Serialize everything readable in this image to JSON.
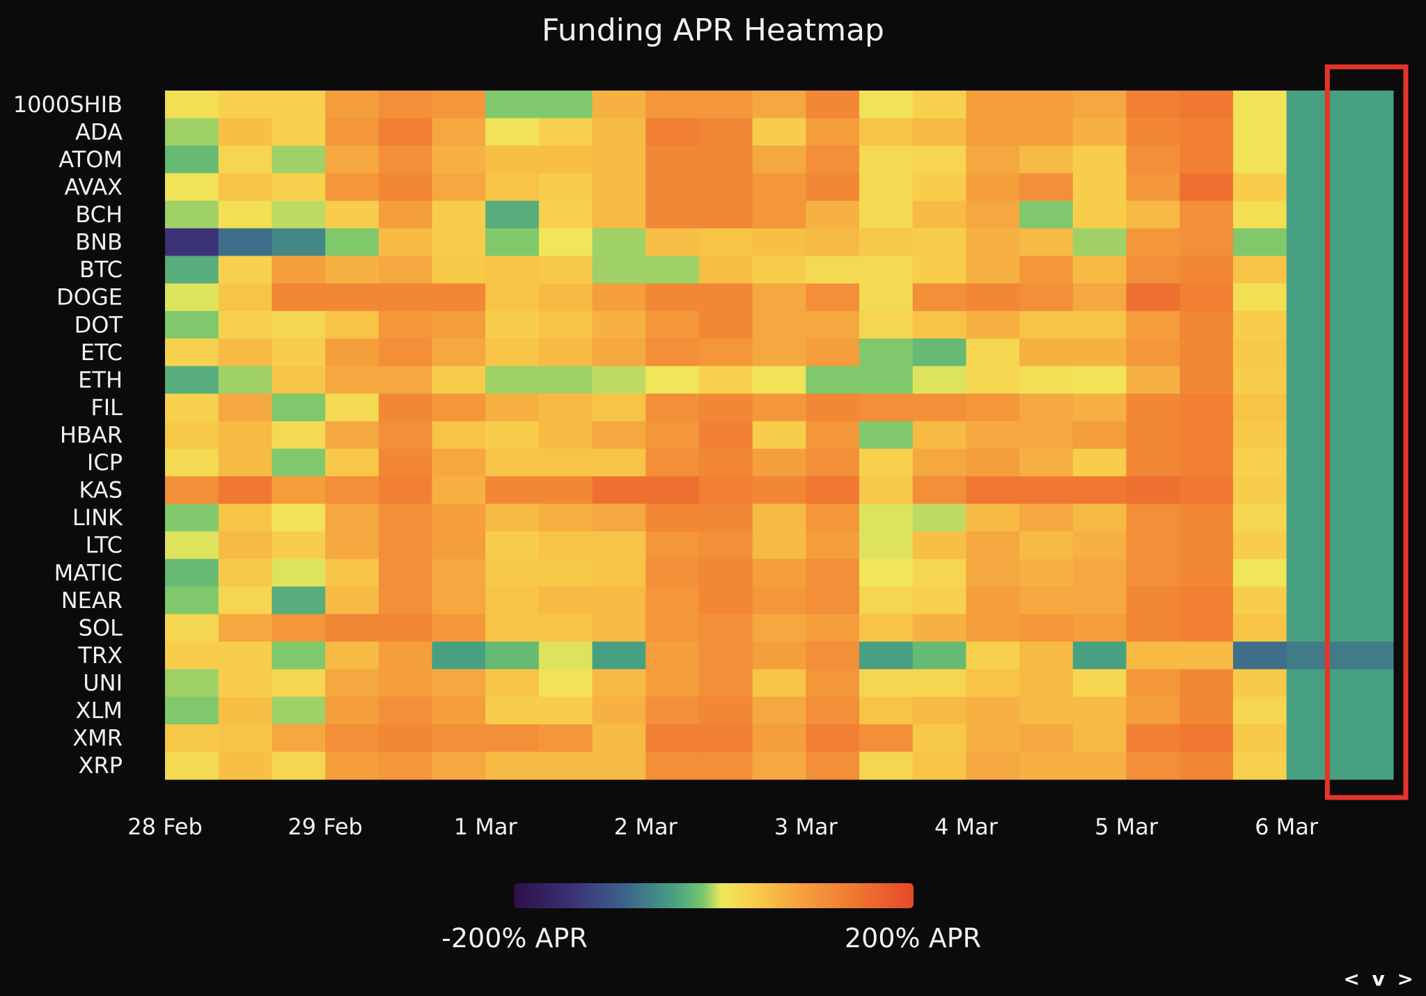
{
  "chart_data": {
    "type": "heatmap",
    "title": "Funding APR Heatmap",
    "rows": [
      "1000SHIB",
      "ADA",
      "ATOM",
      "AVAX",
      "BCH",
      "BNB",
      "BTC",
      "DOGE",
      "DOT",
      "ETC",
      "ETH",
      "FIL",
      "HBAR",
      "ICP",
      "KAS",
      "LINK",
      "LTC",
      "MATIC",
      "NEAR",
      "SOL",
      "TRX",
      "UNI",
      "XLM",
      "XMR",
      "XRP"
    ],
    "x_ticks": [
      "28 Feb",
      "29 Feb",
      "1 Mar",
      "2 Mar",
      "3 Mar",
      "4 Mar",
      "5 Mar",
      "6 Mar"
    ],
    "colorbar": {
      "min_label": "-200% APR",
      "max_label": "200% APR",
      "vmin": -200,
      "vmax": 200
    },
    "highlight_column": 22,
    "highlight_color": "#e5352b",
    "values": [
      [
        20,
        35,
        35,
        90,
        110,
        100,
        -10,
        -10,
        70,
        100,
        100,
        80,
        120,
        15,
        35,
        90,
        90,
        80,
        130,
        140,
        15,
        -40,
        -40
      ],
      [
        -5,
        55,
        35,
        100,
        130,
        80,
        15,
        35,
        60,
        130,
        120,
        40,
        90,
        50,
        60,
        90,
        90,
        70,
        120,
        130,
        15,
        -40,
        -40
      ],
      [
        -20,
        30,
        -5,
        80,
        110,
        70,
        55,
        55,
        60,
        120,
        120,
        80,
        110,
        25,
        30,
        80,
        60,
        40,
        110,
        130,
        15,
        -40,
        -40
      ],
      [
        15,
        50,
        35,
        100,
        120,
        80,
        50,
        40,
        60,
        120,
        120,
        100,
        120,
        25,
        40,
        90,
        110,
        40,
        100,
        150,
        40,
        -40,
        -40
      ],
      [
        -5,
        20,
        0,
        40,
        90,
        40,
        -30,
        35,
        60,
        120,
        120,
        100,
        70,
        25,
        60,
        80,
        -10,
        40,
        60,
        110,
        20,
        -40,
        -40
      ],
      [
        -140,
        -80,
        -60,
        -10,
        60,
        40,
        -10,
        10,
        -5,
        55,
        50,
        55,
        60,
        45,
        40,
        70,
        60,
        -5,
        100,
        110,
        -10,
        -40,
        -40
      ],
      [
        -30,
        35,
        90,
        70,
        80,
        45,
        50,
        45,
        -5,
        -5,
        55,
        40,
        25,
        25,
        40,
        70,
        100,
        60,
        110,
        120,
        50,
        -40,
        -40
      ],
      [
        5,
        50,
        120,
        120,
        120,
        120,
        50,
        60,
        90,
        120,
        120,
        80,
        110,
        25,
        110,
        120,
        110,
        80,
        150,
        130,
        20,
        -40,
        -40
      ],
      [
        -10,
        35,
        30,
        50,
        100,
        90,
        40,
        50,
        70,
        100,
        120,
        80,
        80,
        30,
        50,
        70,
        50,
        50,
        90,
        120,
        40,
        -40,
        -40
      ],
      [
        35,
        60,
        40,
        90,
        110,
        80,
        50,
        60,
        80,
        110,
        100,
        80,
        90,
        -10,
        -20,
        30,
        70,
        70,
        100,
        120,
        45,
        -40,
        -40
      ],
      [
        -30,
        -5,
        50,
        80,
        80,
        40,
        -5,
        -5,
        0,
        10,
        35,
        15,
        -10,
        -10,
        5,
        30,
        20,
        15,
        70,
        120,
        40,
        -40,
        -40
      ],
      [
        35,
        80,
        -10,
        25,
        120,
        100,
        70,
        60,
        50,
        110,
        120,
        100,
        120,
        110,
        110,
        100,
        80,
        70,
        120,
        130,
        50,
        -40,
        -40
      ],
      [
        45,
        60,
        25,
        80,
        110,
        50,
        40,
        60,
        80,
        100,
        130,
        40,
        100,
        -10,
        60,
        80,
        80,
        90,
        120,
        130,
        45,
        -40,
        -40
      ],
      [
        25,
        60,
        -10,
        45,
        120,
        80,
        50,
        50,
        50,
        110,
        120,
        90,
        110,
        35,
        80,
        90,
        70,
        40,
        120,
        130,
        35,
        -40,
        -40
      ],
      [
        110,
        140,
        90,
        110,
        130,
        70,
        120,
        120,
        150,
        150,
        130,
        120,
        140,
        45,
        110,
        140,
        140,
        140,
        150,
        140,
        40,
        -40,
        -40
      ],
      [
        -10,
        50,
        15,
        80,
        110,
        90,
        60,
        70,
        80,
        120,
        120,
        60,
        100,
        5,
        0,
        60,
        80,
        60,
        110,
        120,
        30,
        -40,
        -40
      ],
      [
        5,
        60,
        40,
        80,
        110,
        90,
        40,
        50,
        50,
        100,
        110,
        60,
        90,
        5,
        55,
        80,
        60,
        70,
        110,
        120,
        40,
        -40,
        -40
      ],
      [
        -20,
        45,
        5,
        50,
        110,
        80,
        45,
        45,
        50,
        110,
        120,
        90,
        110,
        10,
        30,
        80,
        70,
        80,
        110,
        120,
        10,
        -40,
        -40
      ],
      [
        -10,
        30,
        -30,
        60,
        110,
        80,
        50,
        60,
        60,
        100,
        120,
        100,
        110,
        30,
        35,
        90,
        80,
        80,
        120,
        130,
        40,
        -40,
        -40
      ],
      [
        30,
        80,
        100,
        120,
        120,
        100,
        50,
        50,
        60,
        100,
        110,
        80,
        90,
        50,
        70,
        90,
        100,
        90,
        120,
        130,
        50,
        -40,
        -40
      ],
      [
        40,
        40,
        -10,
        60,
        90,
        -40,
        -20,
        5,
        -40,
        90,
        110,
        90,
        110,
        -40,
        -20,
        35,
        60,
        -40,
        60,
        60,
        -80,
        -70,
        -70
      ],
      [
        -5,
        40,
        30,
        80,
        90,
        80,
        50,
        15,
        60,
        90,
        110,
        50,
        100,
        30,
        30,
        50,
        60,
        30,
        100,
        120,
        45,
        -40,
        -40
      ],
      [
        -10,
        55,
        -5,
        90,
        110,
        90,
        40,
        40,
        70,
        110,
        120,
        80,
        110,
        50,
        60,
        70,
        60,
        60,
        90,
        120,
        30,
        -40,
        -40
      ],
      [
        45,
        50,
        80,
        110,
        120,
        110,
        110,
        100,
        60,
        130,
        130,
        90,
        130,
        110,
        45,
        70,
        80,
        60,
        130,
        140,
        45,
        -40,
        -40
      ],
      [
        25,
        55,
        30,
        90,
        100,
        80,
        60,
        60,
        60,
        110,
        110,
        80,
        110,
        30,
        50,
        80,
        70,
        70,
        110,
        120,
        35,
        -40,
        -40
      ]
    ]
  },
  "footer": {
    "nav_label": "< v >"
  }
}
